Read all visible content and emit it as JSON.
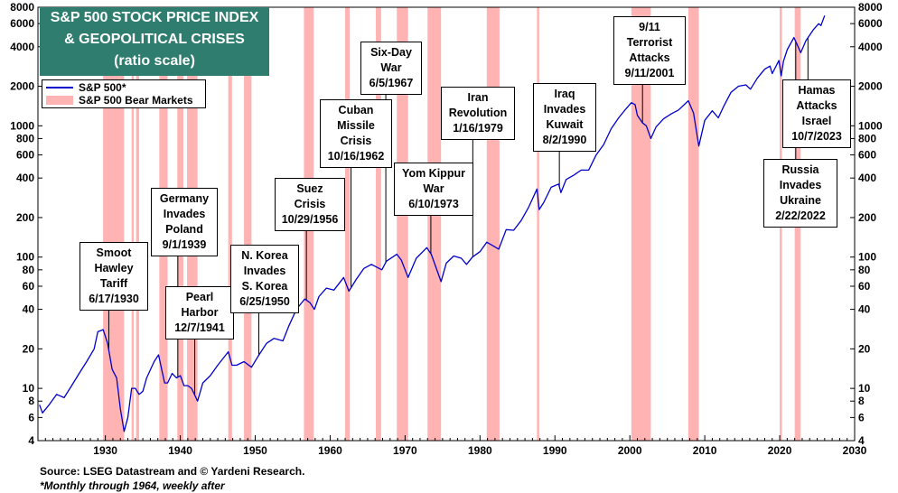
{
  "chart_data": {
    "type": "line",
    "title_lines": [
      "S&P 500 STOCK PRICE INDEX",
      "& GEOPOLITICAL CRISES",
      "(ratio scale)"
    ],
    "x_range": [
      1921,
      2030
    ],
    "y_range": [
      4,
      8000
    ],
    "y_scale": "log",
    "x_ticks": [
      1930,
      1940,
      1950,
      1960,
      1970,
      1980,
      1990,
      2000,
      2010,
      2020,
      2030
    ],
    "y_ticks": [
      4,
      6,
      8,
      10,
      20,
      40,
      60,
      80,
      100,
      200,
      400,
      600,
      800,
      1000,
      2000,
      4000,
      6000,
      8000
    ],
    "legend": {
      "line": "S&P 500*",
      "band": "S&P 500 Bear Markets"
    },
    "colors": {
      "line": "#0000cc",
      "band": "#ffb3b3",
      "title_bg": "#2f7d6e",
      "title_text": "#ffffff"
    },
    "series": [
      {
        "name": "S&P 500*",
        "x": [
          1921.2,
          1921.6,
          1922.5,
          1923.5,
          1924.5,
          1925.5,
          1926.5,
          1927.5,
          1928.5,
          1929.0,
          1929.7,
          1930.3,
          1930.9,
          1931.5,
          1932.0,
          1932.5,
          1933.0,
          1933.5,
          1934.0,
          1934.5,
          1935.0,
          1935.5,
          1936.5,
          1937.1,
          1937.9,
          1938.3,
          1938.9,
          1939.5,
          1940.0,
          1940.5,
          1941.0,
          1941.5,
          1942.3,
          1943.0,
          1944.0,
          1945.0,
          1946.4,
          1946.9,
          1947.5,
          1948.5,
          1949.5,
          1950.5,
          1951.5,
          1952.5,
          1953.7,
          1954.5,
          1955.5,
          1956.6,
          1957.3,
          1957.9,
          1958.5,
          1959.5,
          1960.5,
          1961.8,
          1962.5,
          1963.5,
          1964.5,
          1965.5,
          1966.9,
          1967.5,
          1968.9,
          1969.5,
          1970.4,
          1971.5,
          1972.9,
          1973.5,
          1974.8,
          1975.5,
          1976.5,
          1977.5,
          1978.2,
          1979.0,
          1980.0,
          1980.9,
          1982.5,
          1983.5,
          1984.5,
          1985.5,
          1986.5,
          1987.6,
          1987.9,
          1988.5,
          1989.5,
          1990.5,
          1990.8,
          1991.5,
          1992.5,
          1993.5,
          1994.5,
          1995.5,
          1996.5,
          1997.5,
          1998.5,
          1999.5,
          2000.2,
          2000.7,
          2001.0,
          2001.7,
          2002.2,
          2002.8,
          2003.5,
          2004.5,
          2005.5,
          2006.5,
          2007.8,
          2008.5,
          2009.2,
          2010.0,
          2011.0,
          2011.8,
          2012.5,
          2013.5,
          2014.5,
          2015.5,
          2016.1,
          2017.0,
          2018.0,
          2018.7,
          2019.0,
          2019.9,
          2020.2,
          2020.5,
          2021.0,
          2021.9,
          2022.3,
          2022.8,
          2023.5,
          2024.0,
          2024.5,
          2025.2,
          2025.5,
          2026.0
        ],
        "values": [
          7.5,
          6.5,
          7.5,
          9.0,
          8.5,
          10.5,
          13,
          16,
          20,
          27,
          28,
          22,
          14,
          12,
          7,
          4.7,
          6,
          10,
          10,
          9,
          9.5,
          12,
          16,
          18,
          11,
          11,
          13,
          12,
          12.5,
          10.5,
          10.5,
          10,
          8,
          11,
          12.5,
          15,
          19,
          15,
          15,
          16,
          14.5,
          18,
          22,
          24,
          23,
          30,
          40,
          48,
          45,
          40,
          50,
          58,
          56,
          70,
          55,
          68,
          82,
          88,
          80,
          93,
          105,
          95,
          70,
          98,
          118,
          105,
          65,
          90,
          102,
          98,
          88,
          100,
          110,
          130,
          115,
          162,
          160,
          190,
          240,
          330,
          230,
          260,
          340,
          360,
          310,
          390,
          420,
          460,
          460,
          600,
          720,
          950,
          1150,
          1350,
          1500,
          1450,
          1200,
          1050,
          1000,
          800,
          980,
          1130,
          1230,
          1320,
          1550,
          1250,
          700,
          1100,
          1300,
          1150,
          1400,
          1800,
          2000,
          2050,
          1900,
          2300,
          2700,
          2850,
          2500,
          3150,
          2400,
          3100,
          3800,
          4700,
          4200,
          3600,
          4450,
          4900,
          5400,
          6000,
          5800,
          6900
        ]
      }
    ],
    "bear_markets": [
      [
        1929.7,
        1932.5
      ],
      [
        1933.5,
        1933.8
      ],
      [
        1934.1,
        1934.5
      ],
      [
        1937.2,
        1938.3
      ],
      [
        1939.6,
        1940.4
      ],
      [
        1940.9,
        1942.3
      ],
      [
        1946.4,
        1946.9
      ],
      [
        1948.5,
        1949.5
      ],
      [
        1956.5,
        1957.8
      ],
      [
        1962.0,
        1962.6
      ],
      [
        1966.1,
        1966.8
      ],
      [
        1968.9,
        1970.4
      ],
      [
        1973.0,
        1974.8
      ],
      [
        1980.9,
        1982.6
      ],
      [
        1987.6,
        1987.9
      ],
      [
        2000.2,
        2002.8
      ],
      [
        2007.8,
        2009.2
      ],
      [
        2020.0,
        2020.3
      ],
      [
        2022.0,
        2022.8
      ]
    ],
    "annotations": [
      {
        "id": "smoot",
        "lines": [
          "Smoot",
          "Hawley",
          "Tariff",
          "6/17/1930"
        ],
        "event_year": 1930.46
      },
      {
        "id": "germany",
        "lines": [
          "Germany",
          "Invades",
          "Poland",
          "9/1/1939"
        ],
        "event_year": 1939.67
      },
      {
        "id": "pearl",
        "lines": [
          "Pearl",
          "Harbor",
          "12/7/1941"
        ],
        "event_year": 1941.93
      },
      {
        "id": "korea",
        "lines": [
          "N. Korea",
          "Invades",
          "S. Korea",
          "6/25/1950"
        ],
        "event_year": 1950.48
      },
      {
        "id": "suez",
        "lines": [
          "Suez",
          "Crisis",
          "10/29/1956"
        ],
        "event_year": 1956.83
      },
      {
        "id": "cuban",
        "lines": [
          "Cuban",
          "Missile",
          "Crisis",
          "10/16/1962"
        ],
        "event_year": 1962.79
      },
      {
        "id": "sixday",
        "lines": [
          "Six-Day",
          "War",
          "6/5/1967"
        ],
        "event_year": 1967.43
      },
      {
        "id": "yom",
        "lines": [
          "Yom Kippur",
          "War",
          "6/10/1973"
        ],
        "event_year": 1973.44
      },
      {
        "id": "iran",
        "lines": [
          "Iran",
          "Revolution",
          "1/16/1979"
        ],
        "event_year": 1979.04
      },
      {
        "id": "iraq",
        "lines": [
          "Iraq",
          "Invades",
          "Kuwait",
          "8/2/1990"
        ],
        "event_year": 1990.59
      },
      {
        "id": "nineeleven",
        "lines": [
          "9/11",
          "Terrorist",
          "Attacks",
          "9/11/2001"
        ],
        "event_year": 2001.69
      },
      {
        "id": "russia",
        "lines": [
          "Russia",
          "Invades",
          "Ukraine",
          "2/22/2022"
        ],
        "event_year": 2022.14
      },
      {
        "id": "hamas",
        "lines": [
          "Hamas",
          "Attacks",
          "Israel",
          "10/7/2023"
        ],
        "event_year": 2023.77
      }
    ]
  },
  "footer": {
    "source": "Source: LSEG Datastream and © Yardeni Research.",
    "note": "*Monthly through 1964, weekly after"
  }
}
